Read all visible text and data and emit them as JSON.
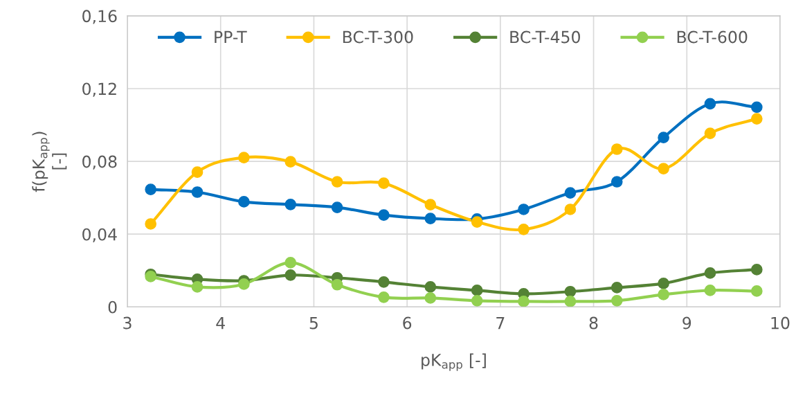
{
  "chart_data": {
    "type": "line",
    "xlabel": "pK$_{app}$ [-]",
    "ylabel": "f(pK$_{app}$)\n[-]",
    "x": [
      3.25,
      3.75,
      4.25,
      4.75,
      5.25,
      5.75,
      6.25,
      6.75,
      7.25,
      7.75,
      8.25,
      8.75,
      9.25,
      9.75
    ],
    "series": [
      {
        "name": "PP-T",
        "color": "#0070c0",
        "values": [
          0.0646,
          0.0631,
          0.0578,
          0.0563,
          0.0547,
          0.0505,
          0.0486,
          0.0483,
          0.0536,
          0.0627,
          0.0688,
          0.0931,
          0.1117,
          0.1098
        ]
      },
      {
        "name": "BC-T-300",
        "color": "#ffc000",
        "values": [
          0.0456,
          0.0741,
          0.0821,
          0.0798,
          0.0688,
          0.068,
          0.0562,
          0.0467,
          0.0426,
          0.0536,
          0.0867,
          0.076,
          0.0954,
          0.1034
        ]
      },
      {
        "name": "BC-T-450",
        "color": "#548235",
        "values": [
          0.0179,
          0.0152,
          0.0144,
          0.0175,
          0.016,
          0.0137,
          0.011,
          0.0091,
          0.0072,
          0.0084,
          0.0106,
          0.0129,
          0.0186,
          0.0205
        ]
      },
      {
        "name": "BC-T-600",
        "color": "#92d050",
        "values": [
          0.0167,
          0.011,
          0.0125,
          0.0243,
          0.0122,
          0.0053,
          0.0049,
          0.0034,
          0.003,
          0.003,
          0.0034,
          0.0068,
          0.0091,
          0.0087
        ]
      }
    ],
    "xlim": [
      3,
      10
    ],
    "xticks": [
      3,
      4,
      5,
      6,
      7,
      8,
      9,
      10
    ],
    "ylim": [
      0,
      0.16
    ],
    "yticks": [
      0,
      {
        "value": 0.04,
        "label": "0,04"
      },
      {
        "value": 0.08,
        "label": "0,08"
      },
      {
        "value": 0.12,
        "label": "0,12"
      },
      {
        "value": 0.16,
        "label": "0,16"
      }
    ],
    "grid": true,
    "legend": "top",
    "marker": "circle",
    "line_style": "solid"
  }
}
